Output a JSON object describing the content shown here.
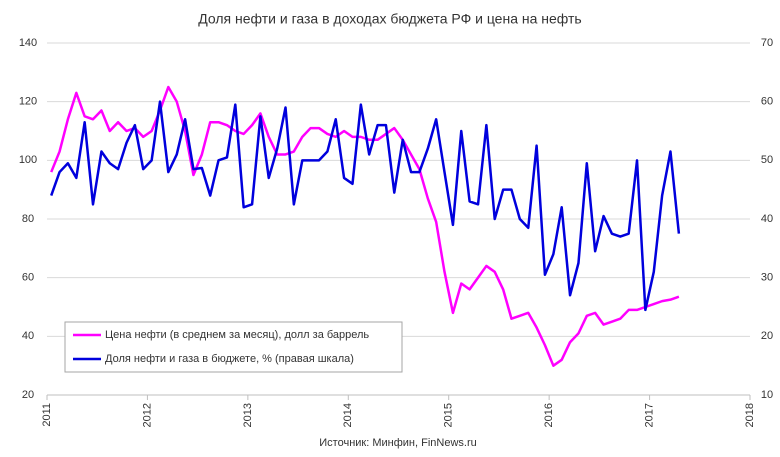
{
  "chart_data": {
    "type": "line",
    "title": "Доля нефти и газа в доходах бюджета РФ и цена на нефть",
    "source": "Источник: Минфин, FinNews.ru",
    "x": [
      2011.042,
      2011.125,
      2011.208,
      2011.292,
      2011.375,
      2011.458,
      2011.542,
      2011.625,
      2011.708,
      2011.792,
      2011.875,
      2011.958,
      2012.042,
      2012.125,
      2012.208,
      2012.292,
      2012.375,
      2012.458,
      2012.542,
      2012.625,
      2012.708,
      2012.792,
      2012.875,
      2012.958,
      2013.042,
      2013.125,
      2013.208,
      2013.292,
      2013.375,
      2013.458,
      2013.542,
      2013.625,
      2013.708,
      2013.792,
      2013.875,
      2013.958,
      2014.042,
      2014.125,
      2014.208,
      2014.292,
      2014.375,
      2014.458,
      2014.542,
      2014.625,
      2014.708,
      2014.792,
      2014.875,
      2014.958,
      2015.042,
      2015.125,
      2015.208,
      2015.292,
      2015.375,
      2015.458,
      2015.542,
      2015.625,
      2015.708,
      2015.792,
      2015.875,
      2015.958,
      2016.042,
      2016.125,
      2016.208,
      2016.292,
      2016.375,
      2016.458,
      2016.542,
      2016.625,
      2016.708,
      2016.792,
      2016.875,
      2016.958,
      2017.042,
      2017.125,
      2017.208,
      2017.292
    ],
    "series": [
      {
        "name": "Цена нефти (в среднем за месяц), долл за баррель",
        "color": "#ff00ff",
        "axis": "y",
        "values": [
          96,
          103,
          114,
          123,
          115,
          114,
          117,
          110,
          113,
          110,
          111,
          108,
          110,
          117,
          125,
          120,
          110,
          95,
          102,
          113,
          113,
          112,
          110,
          109,
          112,
          116,
          108,
          102,
          102,
          103,
          108,
          111,
          111,
          109,
          108,
          110,
          108,
          108,
          107,
          107,
          109,
          111,
          107,
          102,
          97,
          87,
          79,
          62,
          48,
          58,
          56,
          60,
          64,
          62,
          56,
          46,
          47,
          48,
          43,
          37,
          30,
          32,
          38,
          41,
          47,
          48,
          44,
          45,
          46,
          49,
          49,
          50,
          51,
          52,
          52.5,
          53.5
        ]
      },
      {
        "name": "Доля нефти и газа в бюджете, % (правая шкала)",
        "color": "#0000dd",
        "axis": "y2",
        "values": [
          44,
          48,
          49.5,
          47,
          56.5,
          42.5,
          51.5,
          49.5,
          48.5,
          53,
          56,
          48.5,
          50,
          60,
          48,
          51,
          57,
          48.5,
          48.7,
          44,
          50,
          50.5,
          59.5,
          42,
          42.5,
          57.5,
          47,
          52,
          59,
          42.5,
          50,
          50,
          50,
          51.5,
          57,
          47,
          46,
          59.5,
          51,
          56,
          56,
          44.5,
          53.5,
          48,
          48,
          52,
          57,
          48,
          39,
          55,
          43,
          42.5,
          56,
          40,
          45,
          45,
          40,
          38.5,
          52.5,
          30.5,
          34,
          42,
          27,
          32.5,
          49.5,
          34.5,
          40.5,
          37.5,
          37,
          37.5,
          50,
          24.5,
          31,
          44,
          51.5,
          37.5
        ]
      }
    ],
    "xlim": [
      2011,
      2018
    ],
    "xticks": [
      2011,
      2012,
      2013,
      2014,
      2015,
      2016,
      2017,
      2018
    ],
    "ylim": [
      20,
      140
    ],
    "yticks": [
      20,
      40,
      60,
      80,
      100,
      120,
      140
    ],
    "y2lim": [
      10,
      70
    ],
    "y2ticks": [
      10,
      20,
      30,
      40,
      50,
      60,
      70
    ],
    "grid": true,
    "legend": "lower left"
  }
}
